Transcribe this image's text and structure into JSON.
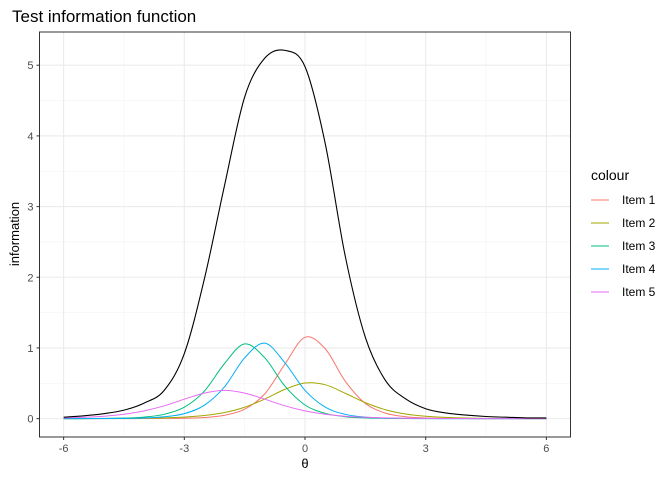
{
  "chart_data": {
    "type": "line",
    "title": "Test information function",
    "xlabel": "θ",
    "ylabel": "information",
    "xlim": [
      -6.6,
      6.6
    ],
    "ylim": [
      -0.26,
      5.47
    ],
    "xticks": [
      -6,
      -3,
      0,
      3,
      6
    ],
    "xtick_labels": [
      "-6",
      "-3",
      "0",
      "3",
      "6"
    ],
    "yticks": [
      0,
      1,
      2,
      3,
      4,
      5
    ],
    "ytick_labels": [
      "0",
      "1",
      "2",
      "3",
      "4",
      "5"
    ],
    "grid": true,
    "legend": {
      "title": "colour",
      "placement": "right"
    },
    "x": [
      -6,
      -5.5,
      -5,
      -4.5,
      -4,
      -3.5,
      -3,
      -2.5,
      -2,
      -1.5,
      -1,
      -0.5,
      0,
      0.5,
      1,
      1.5,
      2,
      2.5,
      3,
      3.5,
      4,
      4.5,
      5,
      5.5,
      6
    ],
    "test_information": {
      "color": "#000000",
      "values": [
        0.02,
        0.04,
        0.07,
        0.12,
        0.22,
        0.4,
        0.92,
        1.98,
        3.3,
        4.55,
        5.1,
        5.21,
        4.98,
        3.9,
        2.3,
        1.15,
        0.54,
        0.28,
        0.14,
        0.08,
        0.05,
        0.03,
        0.02,
        0.01,
        0.01
      ]
    },
    "series": [
      {
        "name": "Item 1",
        "color": "#F8766D",
        "values": [
          0,
          0,
          0,
          0,
          0.001,
          0.003,
          0.006,
          0.016,
          0.047,
          0.133,
          0.35,
          0.77,
          1.15,
          0.99,
          0.53,
          0.215,
          0.078,
          0.027,
          0.009,
          0.003,
          0.001,
          0,
          0,
          0,
          0
        ]
      },
      {
        "name": "Item 2",
        "color": "#A3A500",
        "values": [
          0.0003,
          0.0007,
          0.0013,
          0.003,
          0.0054,
          0.011,
          0.022,
          0.044,
          0.086,
          0.161,
          0.277,
          0.414,
          0.504,
          0.48,
          0.359,
          0.226,
          0.126,
          0.066,
          0.034,
          0.017,
          0.008,
          0.004,
          0.002,
          0.001,
          0.0005
        ]
      },
      {
        "name": "Item 3",
        "color": "#00BF7D",
        "values": [
          0,
          0.001,
          0.003,
          0.008,
          0.022,
          0.061,
          0.161,
          0.39,
          0.78,
          1.057,
          0.86,
          0.46,
          0.193,
          0.075,
          0.027,
          0.01,
          0.004,
          0.001,
          0,
          0,
          0,
          0,
          0,
          0,
          0
        ]
      },
      {
        "name": "Item 4",
        "color": "#00B0F6",
        "values": [
          0,
          0,
          0.001,
          0.003,
          0.009,
          0.026,
          0.071,
          0.19,
          0.45,
          0.86,
          1.068,
          0.79,
          0.4,
          0.163,
          0.061,
          0.022,
          0.008,
          0.003,
          0.001,
          0,
          0,
          0,
          0,
          0,
          0
        ]
      },
      {
        "name": "Item 5",
        "color": "#E76BF3",
        "values": [
          0.01,
          0.019,
          0.034,
          0.062,
          0.109,
          0.181,
          0.275,
          0.361,
          0.4,
          0.361,
          0.275,
          0.181,
          0.109,
          0.062,
          0.034,
          0.019,
          0.01,
          0.0056,
          0.003,
          0.0017,
          0.001,
          0.0005,
          0.0003,
          0.0002,
          0.0001
        ]
      }
    ]
  }
}
